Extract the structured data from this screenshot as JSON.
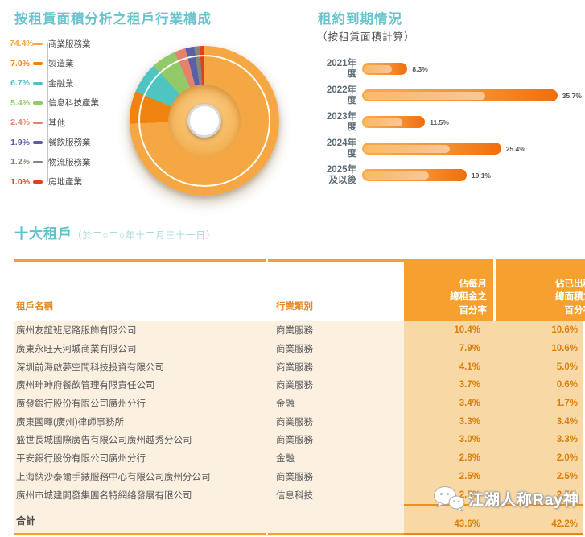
{
  "industry_composition": {
    "title": "按租賃面積分析之租戶行業構成",
    "chart_data": {
      "type": "pie",
      "donut": true,
      "unit": "%",
      "start_angle_deg": 0,
      "direction": "clockwise",
      "segments": [
        {
          "label": "商業服務業",
          "value": 74.4,
          "value_label": "74.4%",
          "color": "#F4A743"
        },
        {
          "label": "製造業",
          "value": 7.0,
          "value_label": "7.0%",
          "color": "#F0820F"
        },
        {
          "label": "金融業",
          "value": 6.7,
          "value_label": "6.7%",
          "color": "#4EC5C0"
        },
        {
          "label": "信息科技產業",
          "value": 5.4,
          "value_label": "5.4%",
          "color": "#93CA69"
        },
        {
          "label": "其他",
          "value": 2.4,
          "value_label": "2.4%",
          "color": "#E5826B"
        },
        {
          "label": "餐飲服務業",
          "value": 1.9,
          "value_label": "1.9%",
          "color": "#5A5FA8"
        },
        {
          "label": "物流服務業",
          "value": 1.2,
          "value_label": "1.2%",
          "color": "#85867C"
        },
        {
          "label": "房地產業",
          "value": 1.0,
          "value_label": "1.0%",
          "color": "#E2401C"
        }
      ]
    }
  },
  "lease_expiry": {
    "title": "租約到期情況",
    "subtitle": "（按租賃面積計算）",
    "chart_data": {
      "type": "bar",
      "orientation": "horizontal",
      "unit": "%",
      "xlim": [
        0,
        36
      ],
      "categories": [
        "2021年度",
        "2022年度",
        "2023年度",
        "2024年度",
        "2025年\n及以後"
      ],
      "values": [
        8.3,
        35.7,
        11.5,
        25.4,
        19.1
      ],
      "value_labels": [
        "8.3%",
        "35.7%",
        "11.5%",
        "25.4%",
        "19.1%"
      ],
      "bar_color_start": "#F9AC46",
      "bar_color_end": "#EF6E0E"
    }
  },
  "tenants_table": {
    "title": "十大租戶",
    "subtitle": "（於二○二○年十二月三十一日）",
    "columns": [
      "租戶名稱",
      "行業類別",
      "佔每月\n總租金之\n百分率",
      "佔已出租\n總面積之\n百分率"
    ],
    "rows": [
      {
        "name": "廣州友誼班尼路服飾有限公司",
        "category": "商業服務",
        "rent_pct": "10.4%",
        "area_pct": "10.6%"
      },
      {
        "name": "廣東永旺天河城商業有限公司",
        "category": "商業服務",
        "rent_pct": "7.9%",
        "area_pct": "10.6%"
      },
      {
        "name": "深圳前海啟夢空間科技投資有限公司",
        "category": "商業服務",
        "rent_pct": "4.1%",
        "area_pct": "5.0%"
      },
      {
        "name": "廣州珅珅府餐飲管理有限責任公司",
        "category": "商業服務",
        "rent_pct": "3.7%",
        "area_pct": "0.6%"
      },
      {
        "name": "廣發銀行股份有限公司廣州分行",
        "category": "金融",
        "rent_pct": "3.4%",
        "area_pct": "1.7%"
      },
      {
        "name": "廣東國暉(廣州)律師事務所",
        "category": "商業服務",
        "rent_pct": "3.3%",
        "area_pct": "3.4%"
      },
      {
        "name": "盛世長城國際廣告有限公司廣州越秀分公司",
        "category": "商業服務",
        "rent_pct": "3.0%",
        "area_pct": "3.3%"
      },
      {
        "name": "平安銀行股份有限公司廣州分行",
        "category": "金融",
        "rent_pct": "2.8%",
        "area_pct": "2.0%"
      },
      {
        "name": "上海納沙泰爾手錶服務中心有限公司廣州分公司",
        "category": "商業服務",
        "rent_pct": "2.5%",
        "area_pct": "2.5%"
      },
      {
        "name": "廣州市城建開發集團名特網絡發展有限公司",
        "category": "信息科技",
        "rent_pct": "2.5%",
        "area_pct": "2.5%"
      }
    ],
    "total_label": "合計",
    "total_rent_pct": "43.6%",
    "total_area_pct": "42.2%"
  },
  "watermark": {
    "icon": "wechat-icon",
    "text": "江湖人称Ray神"
  },
  "colors": {
    "title_teal": "#68C5CE",
    "subtitle_teal": "#A6DADF",
    "header_orange": "#F6A12F",
    "row_cream": "#FCF1E0",
    "numeric_col_bg": "#F8D8A4",
    "percent_text": "#DA7D08",
    "body_text": "#58585B"
  }
}
